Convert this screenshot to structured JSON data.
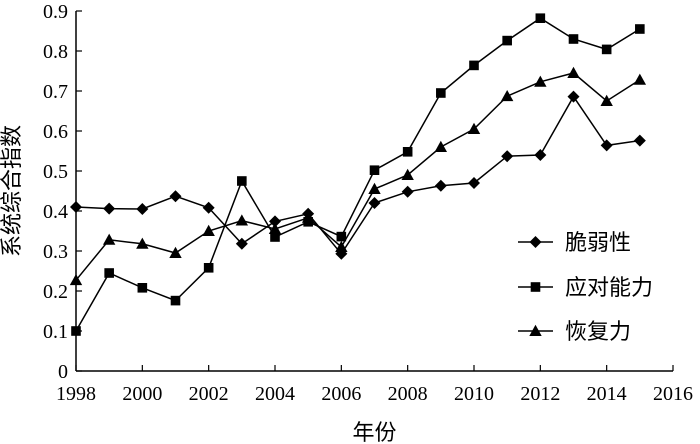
{
  "chart_data": {
    "type": "line",
    "title": "",
    "xlabel": "年份",
    "ylabel": "系统综合指数",
    "xlim": [
      1998,
      2016
    ],
    "ylim": [
      0,
      0.9
    ],
    "xticks": [
      1998,
      2000,
      2002,
      2004,
      2006,
      2008,
      2010,
      2012,
      2014,
      2016
    ],
    "yticks": [
      0,
      0.1,
      0.2,
      0.3,
      0.4,
      0.5,
      0.6,
      0.7,
      0.8,
      0.9
    ],
    "x": [
      1998,
      1999,
      2000,
      2001,
      2002,
      2003,
      2004,
      2005,
      2006,
      2007,
      2008,
      2009,
      2010,
      2011,
      2012,
      2013,
      2014,
      2015
    ],
    "grid": false,
    "legend_position": "right",
    "series": [
      {
        "name": "脆弱性",
        "marker": "diamond",
        "values": [
          0.41,
          0.406,
          0.405,
          0.437,
          0.408,
          0.318,
          0.374,
          0.393,
          0.293,
          0.42,
          0.448,
          0.463,
          0.47,
          0.537,
          0.54,
          0.686,
          0.564,
          0.576
        ]
      },
      {
        "name": "应对能力",
        "marker": "square",
        "values": [
          0.1,
          0.245,
          0.208,
          0.176,
          0.258,
          0.475,
          0.335,
          0.373,
          0.336,
          0.502,
          0.548,
          0.695,
          0.764,
          0.826,
          0.882,
          0.83,
          0.804,
          0.855
        ]
      },
      {
        "name": "恢复力",
        "marker": "triangle",
        "values": [
          0.227,
          0.328,
          0.318,
          0.295,
          0.35,
          0.376,
          0.355,
          0.383,
          0.31,
          0.455,
          0.49,
          0.56,
          0.605,
          0.687,
          0.723,
          0.745,
          0.675,
          0.728
        ]
      }
    ]
  }
}
